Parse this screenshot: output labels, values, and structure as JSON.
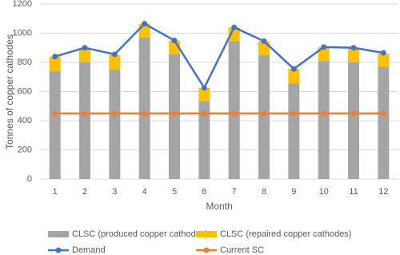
{
  "chart_data": {
    "type": "bar",
    "x_label": "Month",
    "y_label": "Tonnes of copper cathodes",
    "categories": [
      1,
      2,
      3,
      4,
      5,
      6,
      7,
      8,
      9,
      10,
      11,
      12
    ],
    "series": [
      {
        "name": "CLSC (produced copper cathodes)",
        "type": "bar",
        "color": "#a5a5a5",
        "values": [
          740,
          800,
          750,
          970,
          855,
          535,
          945,
          850,
          655,
          810,
          800,
          770
        ]
      },
      {
        "name": "CLSC (repaired copper cathodes)",
        "type": "bar",
        "color": "#ffc000",
        "values": [
          100,
          100,
          100,
          95,
          95,
          90,
          95,
          95,
          100,
          95,
          95,
          90
        ]
      },
      {
        "name": "Demand",
        "type": "line",
        "color": "#4472c4",
        "values": [
          840,
          900,
          855,
          1065,
          950,
          625,
          1040,
          945,
          755,
          905,
          900,
          865
        ]
      },
      {
        "name": "Current SC",
        "type": "line",
        "color": "#ed7d31",
        "values": [
          450,
          450,
          450,
          450,
          450,
          450,
          450,
          450,
          450,
          450,
          450,
          450
        ]
      }
    ],
    "stacked": true,
    "ylim": [
      0,
      1200
    ],
    "yticks": [
      0,
      200,
      400,
      600,
      800,
      1000,
      1200
    ],
    "grid": true,
    "legend": "bottom"
  }
}
